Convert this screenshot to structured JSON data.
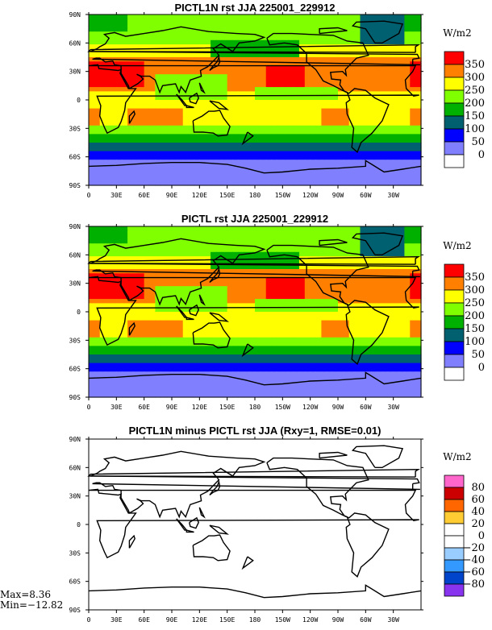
{
  "chart_data": [
    {
      "type": "heatmap",
      "title": "PICTL1N rst JJA 225001_229912",
      "units": "W/m2",
      "xticks": [
        "0",
        "30E",
        "60E",
        "90E",
        "120E",
        "150E",
        "180",
        "150W",
        "120W",
        "90W",
        "60W",
        "30W"
      ],
      "yticks": [
        "90N",
        "60N",
        "30N",
        "0",
        "30S",
        "60S",
        "90S"
      ],
      "legend_levels": [
        "350",
        "300",
        "250",
        "200",
        "150",
        "100",
        "50",
        "0"
      ],
      "colors": [
        "#ff0000",
        "#ff8000",
        "#ffff00",
        "#80ff00",
        "#00b000",
        "#006070",
        "#0000ff",
        "#8080ff",
        "#ffffff"
      ]
    },
    {
      "type": "heatmap",
      "title": "PICTL rst JJA 225001_229912",
      "units": "W/m2",
      "xticks": [
        "0",
        "30E",
        "60E",
        "90E",
        "120E",
        "150E",
        "180",
        "150W",
        "120W",
        "90W",
        "60W",
        "30W"
      ],
      "yticks": [
        "90N",
        "60N",
        "30N",
        "0",
        "30S",
        "60S",
        "90S"
      ],
      "legend_levels": [
        "350",
        "300",
        "250",
        "200",
        "150",
        "100",
        "50",
        "0"
      ],
      "colors": [
        "#ff0000",
        "#ff8000",
        "#ffff00",
        "#80ff00",
        "#00b000",
        "#006070",
        "#0000ff",
        "#8080ff",
        "#ffffff"
      ]
    },
    {
      "type": "heatmap",
      "title": "PICTL1N minus PICTL rst JJA (Rxy=1, RMSE=0.01)",
      "units": "W/m2",
      "xticks": [
        "0",
        "30E",
        "60E",
        "90E",
        "120E",
        "150E",
        "180",
        "150W",
        "120W",
        "90W",
        "60W",
        "30W"
      ],
      "yticks": [
        "90N",
        "60N",
        "30N",
        "0",
        "30S",
        "60S",
        "90S"
      ],
      "legend_levels": [
        "80",
        "60",
        "40",
        "20",
        "0",
        "−20",
        "−40",
        "−60",
        "−80"
      ],
      "colors": [
        "#ff66cc",
        "#cc0000",
        "#ff6600",
        "#ffcc33",
        "#ffffff",
        "#ffffff",
        "#99ccff",
        "#3399ff",
        "#0044cc",
        "#8833ee"
      ],
      "stats": {
        "max": "Max=8.36",
        "min": "Min=−12.82"
      }
    }
  ]
}
